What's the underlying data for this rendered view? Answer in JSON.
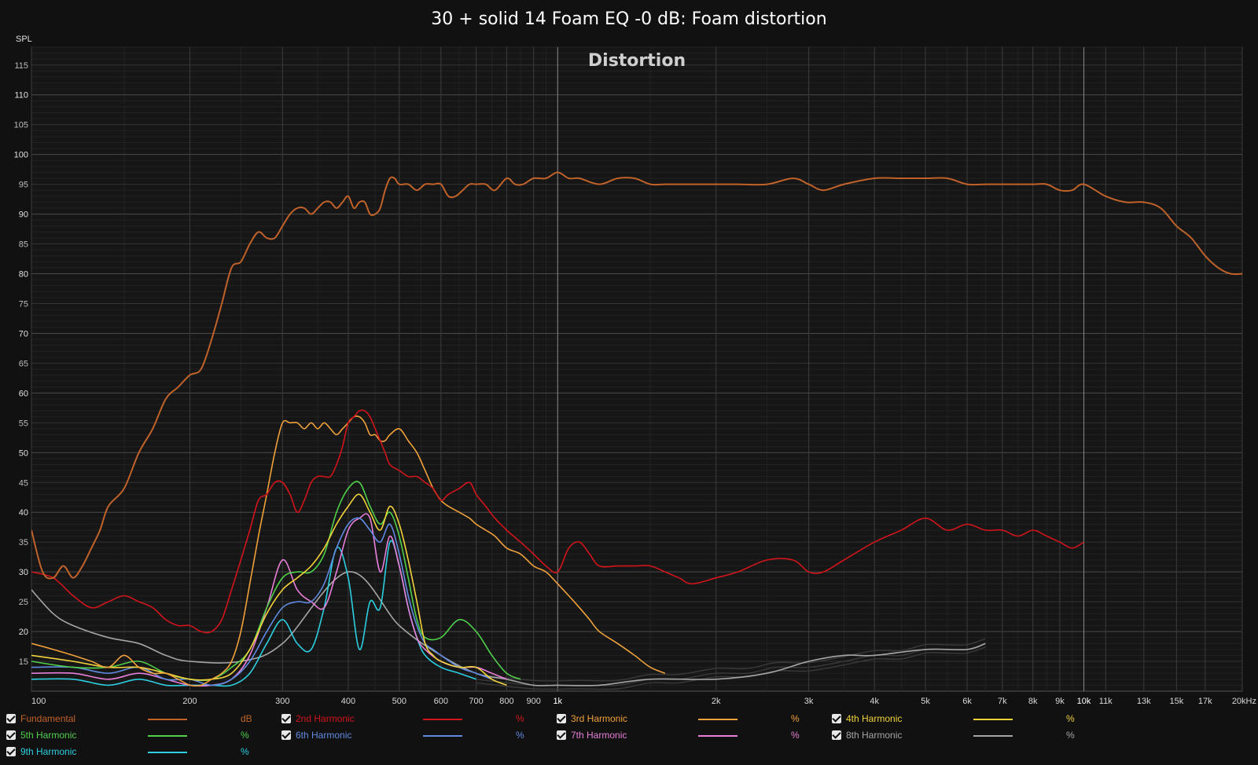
{
  "chart_data": {
    "type": "line",
    "title": "30 + solid 14 Foam EQ -0 dB: Foam distortion",
    "inner_title": "Distortion",
    "ylabel": "SPL",
    "xscale": "log",
    "xlim": [
      100,
      20000
    ],
    "ylim": [
      10,
      118
    ],
    "x_ticks": [
      {
        "v": 100,
        "label": "100"
      },
      {
        "v": 200,
        "label": "200"
      },
      {
        "v": 300,
        "label": "300"
      },
      {
        "v": 400,
        "label": "400"
      },
      {
        "v": 500,
        "label": "500"
      },
      {
        "v": 600,
        "label": "600"
      },
      {
        "v": 700,
        "label": "700"
      },
      {
        "v": 800,
        "label": "800"
      },
      {
        "v": 900,
        "label": "900"
      },
      {
        "v": 1000,
        "label": "1k"
      },
      {
        "v": 2000,
        "label": "2k"
      },
      {
        "v": 3000,
        "label": "3k"
      },
      {
        "v": 4000,
        "label": "4k"
      },
      {
        "v": 5000,
        "label": "5k"
      },
      {
        "v": 6000,
        "label": "6k"
      },
      {
        "v": 7000,
        "label": "7k"
      },
      {
        "v": 8000,
        "label": "8k"
      },
      {
        "v": 9000,
        "label": "9k"
      },
      {
        "v": 10000,
        "label": "10k"
      },
      {
        "v": 11000,
        "label": "11k"
      },
      {
        "v": 13000,
        "label": "13k"
      },
      {
        "v": 15000,
        "label": "15k"
      },
      {
        "v": 17000,
        "label": "17k"
      },
      {
        "v": 20000,
        "label": "20kHz"
      }
    ],
    "y_ticks": [
      "15",
      "20",
      "25",
      "30",
      "35",
      "40",
      "45",
      "50",
      "55",
      "60",
      "65",
      "70",
      "75",
      "80",
      "85",
      "90",
      "95",
      "100",
      "105",
      "110",
      "115"
    ],
    "grid": true,
    "legend_position": "bottom",
    "series": [
      {
        "name": "Fundamental",
        "unit": "dB",
        "color": "#c0622a",
        "x": [
          100,
          105,
          110,
          115,
          120,
          125,
          130,
          135,
          140,
          150,
          160,
          170,
          180,
          190,
          200,
          210,
          220,
          230,
          240,
          250,
          260,
          270,
          280,
          290,
          300,
          310,
          320,
          330,
          340,
          350,
          360,
          370,
          380,
          390,
          400,
          410,
          420,
          430,
          440,
          450,
          460,
          470,
          480,
          490,
          500,
          520,
          540,
          560,
          580,
          600,
          620,
          640,
          660,
          680,
          700,
          730,
          760,
          800,
          830,
          860,
          900,
          950,
          1000,
          1050,
          1100,
          1200,
          1300,
          1400,
          1500,
          1600,
          1800,
          2000,
          2200,
          2500,
          2800,
          3000,
          3200,
          3500,
          4000,
          4500,
          5000,
          5500,
          6000,
          6500,
          7000,
          7500,
          8000,
          8500,
          9000,
          9500,
          10000,
          11000,
          12000,
          13000,
          14000,
          15000,
          16000,
          17000,
          18000,
          19000,
          20000
        ],
        "y": [
          37,
          30,
          29,
          31,
          29,
          31,
          34,
          37,
          41,
          44,
          50,
          54,
          59,
          61,
          63,
          64,
          69,
          75,
          81,
          82,
          85,
          87,
          86,
          86,
          88,
          90,
          91,
          91,
          90,
          91,
          92,
          92,
          91,
          92,
          93,
          91,
          92,
          92,
          90,
          90,
          91,
          94,
          96,
          96,
          95,
          95,
          94,
          95,
          95,
          95,
          93,
          93,
          94,
          95,
          95,
          95,
          94,
          96,
          95,
          95,
          96,
          96,
          97,
          96,
          96,
          95,
          96,
          96,
          95,
          95,
          95,
          95,
          95,
          95,
          96,
          95,
          94,
          95,
          96,
          96,
          96,
          96,
          95,
          95,
          95,
          95,
          95,
          95,
          94,
          94,
          95,
          93,
          92,
          92,
          91,
          88,
          86,
          83,
          81,
          80,
          80
        ]
      },
      {
        "name": "2nd Harmonic",
        "unit": "%",
        "color": "#d2141b",
        "x": [
          100,
          110,
          120,
          130,
          140,
          150,
          160,
          170,
          180,
          190,
          200,
          210,
          220,
          230,
          240,
          250,
          260,
          270,
          280,
          290,
          300,
          310,
          320,
          330,
          340,
          350,
          360,
          370,
          380,
          390,
          400,
          410,
          420,
          430,
          440,
          450,
          460,
          470,
          480,
          500,
          520,
          540,
          560,
          580,
          600,
          620,
          650,
          680,
          700,
          730,
          760,
          800,
          850,
          900,
          950,
          1000,
          1050,
          1100,
          1150,
          1200,
          1300,
          1400,
          1500,
          1600,
          1700,
          1800,
          2000,
          2200,
          2500,
          2800,
          3000,
          3200,
          3500,
          4000,
          4500,
          5000,
          5500,
          6000,
          6500,
          7000,
          7500,
          8000,
          8500,
          9000,
          9500,
          10000
        ],
        "y": [
          30,
          29,
          26,
          24,
          25,
          26,
          25,
          24,
          22,
          21,
          21,
          20,
          20,
          22,
          27,
          32,
          37,
          42,
          43,
          45,
          45,
          43,
          40,
          42,
          45,
          46,
          46,
          46,
          48,
          51,
          55,
          56,
          57,
          57,
          56,
          54,
          52,
          50,
          48,
          47,
          46,
          46,
          45,
          44,
          42,
          43,
          44,
          45,
          43,
          41,
          39,
          37,
          35,
          33,
          31,
          30,
          34,
          35,
          33,
          31,
          31,
          31,
          31,
          30,
          29,
          28,
          29,
          30,
          32,
          32,
          30,
          30,
          32,
          35,
          37,
          39,
          37,
          38,
          37,
          37,
          36,
          37,
          36,
          35,
          34,
          35
        ]
      },
      {
        "name": "3rd Harmonic",
        "unit": "%",
        "color": "#f0a13a",
        "x": [
          100,
          110,
          120,
          130,
          140,
          150,
          160,
          170,
          180,
          190,
          200,
          210,
          220,
          230,
          240,
          250,
          260,
          270,
          280,
          290,
          300,
          310,
          320,
          330,
          340,
          350,
          360,
          370,
          380,
          390,
          400,
          410,
          420,
          430,
          440,
          450,
          460,
          470,
          480,
          500,
          520,
          540,
          560,
          580,
          600,
          620,
          650,
          680,
          700,
          730,
          760,
          800,
          850,
          900,
          950,
          1000,
          1050,
          1100,
          1150,
          1200,
          1300,
          1400,
          1500,
          1600
        ],
        "y": [
          18,
          17,
          16,
          15,
          14,
          16,
          14,
          13,
          13,
          12,
          11,
          11,
          12,
          13,
          15,
          20,
          28,
          36,
          43,
          50,
          55,
          55,
          55,
          54,
          55,
          54,
          55,
          54,
          53,
          54,
          55,
          56,
          56,
          55,
          53,
          53,
          52,
          52,
          53,
          54,
          52,
          50,
          47,
          44,
          42,
          41,
          40,
          39,
          38,
          37,
          36,
          34,
          33,
          31,
          30,
          28,
          26,
          24,
          22,
          20,
          18,
          16,
          14,
          13
        ]
      },
      {
        "name": "4th Harmonic",
        "unit": "%",
        "color": "#f2d33c",
        "x": [
          100,
          120,
          140,
          160,
          180,
          200,
          220,
          240,
          260,
          280,
          300,
          320,
          340,
          360,
          380,
          400,
          420,
          440,
          460,
          480,
          500,
          520,
          540,
          560,
          580,
          600,
          650,
          700,
          750,
          800
        ],
        "y": [
          16,
          15,
          14,
          14,
          13,
          12,
          12,
          13,
          17,
          23,
          27,
          29,
          31,
          34,
          38,
          41,
          43,
          40,
          37,
          41,
          38,
          32,
          25,
          18,
          16,
          15,
          14,
          14,
          12,
          11
        ]
      },
      {
        "name": "5th Harmonic",
        "unit": "%",
        "color": "#4fcf4a",
        "x": [
          100,
          120,
          140,
          160,
          180,
          200,
          220,
          240,
          260,
          280,
          300,
          320,
          340,
          360,
          380,
          400,
          420,
          440,
          460,
          480,
          500,
          520,
          540,
          560,
          600,
          650,
          700,
          750,
          800,
          850
        ],
        "y": [
          15,
          14,
          14,
          15,
          13,
          12,
          12,
          14,
          17,
          24,
          29,
          30,
          30,
          33,
          40,
          44,
          45,
          41,
          38,
          40,
          36,
          29,
          22,
          19,
          19,
          22,
          20,
          16,
          13,
          12
        ]
      },
      {
        "name": "6th Harmonic",
        "unit": "%",
        "color": "#5f8ae0",
        "x": [
          100,
          120,
          140,
          160,
          180,
          200,
          220,
          240,
          260,
          280,
          300,
          320,
          340,
          360,
          380,
          400,
          420,
          440,
          460,
          480,
          500,
          520,
          540,
          560,
          580,
          600,
          650,
          700,
          750
        ],
        "y": [
          14,
          14,
          13,
          14,
          12,
          12,
          11,
          12,
          15,
          20,
          24,
          25,
          25,
          28,
          34,
          38,
          39,
          37,
          35,
          38,
          33,
          26,
          21,
          18,
          17,
          16,
          14,
          13,
          12
        ]
      },
      {
        "name": "7th Harmonic",
        "unit": "%",
        "color": "#e77ed9",
        "x": [
          100,
          120,
          140,
          160,
          180,
          200,
          220,
          240,
          260,
          280,
          300,
          320,
          340,
          360,
          380,
          400,
          420,
          440,
          460,
          480,
          500,
          520,
          540,
          560,
          600,
          650,
          700,
          750,
          800
        ],
        "y": [
          13,
          13,
          12,
          13,
          12,
          11,
          11,
          12,
          16,
          24,
          32,
          27,
          25,
          24,
          30,
          37,
          39,
          39,
          30,
          36,
          31,
          24,
          19,
          17,
          15,
          14,
          14,
          13,
          12
        ]
      },
      {
        "name": "8th Harmonic",
        "unit": "%",
        "color": "#a5a5a5",
        "x": [
          100,
          110,
          120,
          140,
          160,
          180,
          200,
          250,
          300,
          400,
          500,
          600,
          700,
          800,
          900,
          1000,
          1200,
          1500,
          2000,
          2500,
          3000,
          3500,
          4000,
          5000,
          6000,
          6500
        ],
        "y": [
          27,
          23,
          21,
          19,
          18,
          16,
          15,
          15,
          18,
          30,
          21,
          16,
          13,
          12,
          11,
          11,
          11,
          12,
          12,
          13,
          15,
          16,
          16,
          17,
          17,
          18
        ]
      },
      {
        "name": "9th Harmonic",
        "unit": "%",
        "color": "#2ccfe0",
        "x": [
          100,
          120,
          140,
          160,
          180,
          200,
          220,
          240,
          260,
          280,
          300,
          320,
          340,
          360,
          380,
          400,
          420,
          440,
          460,
          480,
          500,
          520,
          540,
          560,
          600,
          650,
          700
        ],
        "y": [
          12,
          12,
          11,
          12,
          11,
          11,
          11,
          11,
          13,
          18,
          22,
          18,
          17,
          24,
          34,
          29,
          17,
          25,
          24,
          35,
          31,
          24,
          19,
          16,
          14,
          13,
          12
        ]
      }
    ],
    "background_traces": {
      "color": "#3a3a3a",
      "x": [
        700,
        900,
        1100,
        1300,
        1500,
        1700,
        2000,
        2300,
        2600,
        3000,
        3500,
        4000,
        4500,
        5000,
        5500,
        6000,
        6500
      ],
      "y": [
        12,
        11,
        11,
        11,
        12,
        12,
        13,
        13,
        14,
        14,
        15,
        16,
        16,
        17,
        17,
        17,
        18
      ]
    }
  },
  "legend": [
    {
      "name": "Fundamental",
      "unit": "dB",
      "color": "#c0622a",
      "text_color": "#c0622a"
    },
    {
      "name": "2nd Harmonic",
      "unit": "%",
      "color": "#d2141b",
      "text_color": "#d2141b"
    },
    {
      "name": "3rd Harmonic",
      "unit": "%",
      "color": "#f0a13a",
      "text_color": "#f0a13a"
    },
    {
      "name": "4th Harmonic",
      "unit": "%",
      "color": "#f2d33c",
      "text_color": "#f2d33c"
    },
    {
      "name": "5th Harmonic",
      "unit": "%",
      "color": "#4fcf4a",
      "text_color": "#4fcf4a"
    },
    {
      "name": "6th Harmonic",
      "unit": "%",
      "color": "#5f8ae0",
      "text_color": "#5f8ae0"
    },
    {
      "name": "7th Harmonic",
      "unit": "%",
      "color": "#e77ed9",
      "text_color": "#e77ed9"
    },
    {
      "name": "8th Harmonic",
      "unit": "%",
      "color": "#a5a5a5",
      "text_color": "#a5a5a5"
    },
    {
      "name": "9th Harmonic",
      "unit": "%",
      "color": "#2ccfe0",
      "text_color": "#2ccfe0"
    }
  ]
}
